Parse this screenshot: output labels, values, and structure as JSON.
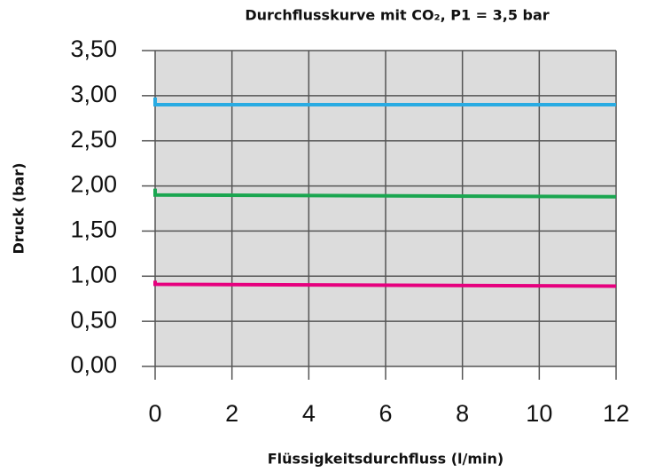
{
  "chart_data": {
    "type": "line",
    "title": "Durchflusskurve mit CO₂, P1 = 3,5 bar",
    "xlabel": "Flüssigkeitsdurchfluss (l/min)",
    "ylabel": "Druck (bar)",
    "x": [
      0,
      0,
      12
    ],
    "series": [
      {
        "color": "#29abe2",
        "values": [
          2.98,
          2.9,
          2.9
        ]
      },
      {
        "color": "#1aa650",
        "values": [
          1.97,
          1.9,
          1.88
        ]
      },
      {
        "color": "#e6007e",
        "values": [
          0.95,
          0.91,
          0.89
        ]
      }
    ],
    "xlim": [
      0,
      12
    ],
    "xticks": [
      0,
      2,
      4,
      6,
      8,
      10,
      12
    ],
    "ylim": [
      0,
      3.5
    ],
    "yticks": [
      {
        "value": 0,
        "label": "0,00"
      },
      {
        "value": 0.5,
        "label": "0,50"
      },
      {
        "value": 1,
        "label": "1,00"
      },
      {
        "value": 1.5,
        "label": "1,50"
      },
      {
        "value": 2,
        "label": "2,00"
      },
      {
        "value": 2.5,
        "label": "2,50"
      },
      {
        "value": 3,
        "label": "3,00"
      },
      {
        "value": 3.5,
        "label": "3,50"
      }
    ],
    "grid": true
  }
}
